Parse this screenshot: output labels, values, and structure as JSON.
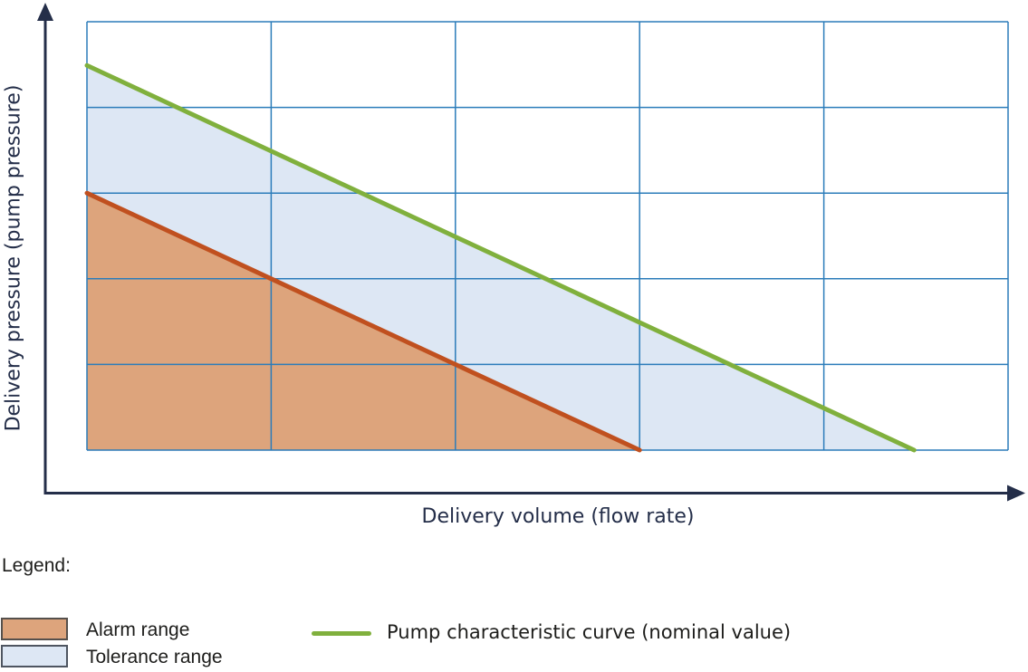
{
  "colors": {
    "axis": "#242e49",
    "axis_label_text": "#242e49",
    "grid": "#2b7cba",
    "legend_text": "#1d1d1b",
    "nominal_curve": "#80b03d",
    "alarm_boundary": "#c0501f",
    "alarm_fill": "#dda47c",
    "tolerance_fill": "#dde7f4"
  },
  "chart_data": {
    "type": "area",
    "title": "",
    "xlabel": "Delivery volume (flow rate)",
    "ylabel": "Delivery pressure (pump pressure)",
    "x_range": [
      0,
      5
    ],
    "y_range": [
      0,
      5
    ],
    "grid": {
      "visible": true,
      "x_divisions": 5,
      "y_divisions": 5,
      "color": "#2b7cba"
    },
    "legend_position": "below",
    "axis_ticks_labeled": false,
    "series": [
      {
        "name": "Alarm range",
        "type": "area",
        "fill": "#dda47c",
        "points": [
          [
            0,
            3
          ],
          [
            3,
            0
          ],
          [
            0,
            0
          ]
        ]
      },
      {
        "name": "Tolerance range",
        "type": "area",
        "fill": "#dde7f4",
        "points": [
          [
            0,
            4.49
          ],
          [
            4.49,
            0
          ],
          [
            3,
            0
          ],
          [
            0,
            3
          ]
        ]
      },
      {
        "name": "Alarm range boundary",
        "type": "line",
        "stroke": "#c0501f",
        "stroke_width": 5,
        "points": [
          [
            0,
            3
          ],
          [
            3,
            0
          ]
        ]
      },
      {
        "name": "Pump characteristic curve (nominal value)",
        "type": "line",
        "stroke": "#80b03d",
        "stroke_width": 5,
        "points": [
          [
            0,
            4.49
          ],
          [
            4.49,
            0
          ]
        ]
      }
    ]
  },
  "legend": {
    "title": "Legend:",
    "items": [
      {
        "label": "Alarm range",
        "swatch": "filled-rect",
        "color": "#dda47c"
      },
      {
        "label": "Tolerance range",
        "swatch": "filled-rect",
        "color": "#dde7f4"
      },
      {
        "label": "Pump characteristic curve (nominal value)",
        "swatch": "line",
        "color": "#80b03d"
      }
    ]
  }
}
